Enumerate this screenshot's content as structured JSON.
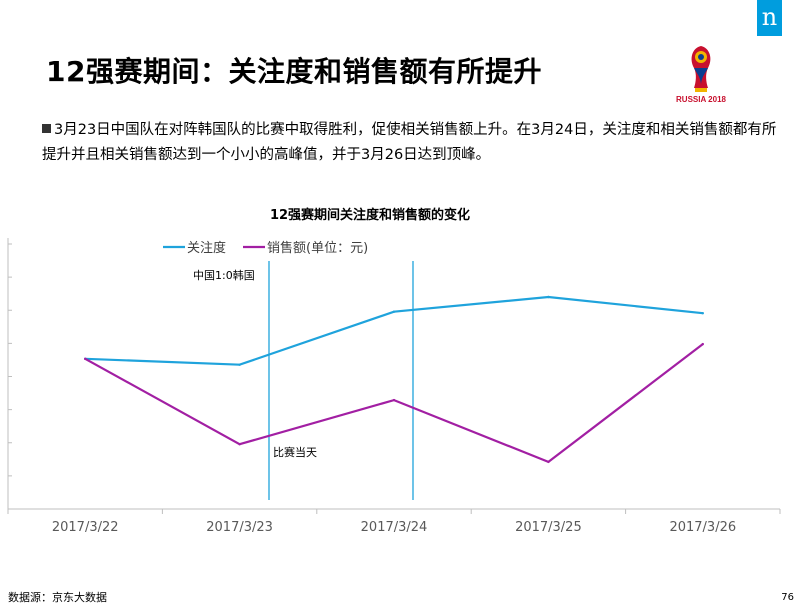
{
  "header": {
    "brand_logo": "n",
    "title": "12强赛期间：关注度和销售额有所提升",
    "event_logo_text": "RUSSIA 2018"
  },
  "summary": {
    "text": "3月23日中国队在对阵韩国队的比赛中取得胜利，促使相关销售额上升。在3月24日，关注度和相关销售额都有所提升并且相关销售额达到一个小小的高峰值，并于3月26日达到顶峰。"
  },
  "footer": {
    "source": "数据源：京东大数据",
    "page_number": "76"
  },
  "chart_data": {
    "type": "line",
    "title": "12强赛期间关注度和销售额的变化",
    "categories": [
      "2017/3/22",
      "2017/3/23",
      "2017/3/24",
      "2017/3/25",
      "2017/3/26"
    ],
    "series": [
      {
        "name": "关注度",
        "color": "#1fa3dc",
        "values": [
          5.1,
          4.9,
          6.7,
          7.2,
          6.65
        ]
      },
      {
        "name": "销售额(单位：元)",
        "color": "#a21fa3",
        "values": [
          5.1,
          2.2,
          3.7,
          1.6,
          5.6
        ]
      }
    ],
    "ylim": [
      0,
      9
    ],
    "grid": false,
    "legend_position": "top-left",
    "annotations": [
      {
        "text": "中国1:0韩国",
        "x": "2017/3/23"
      },
      {
        "text": "比赛当天",
        "x": "2017/3/23"
      }
    ],
    "event_markers": [
      "2017/3/23",
      "2017/3/24"
    ],
    "tick_labels_shown": false
  }
}
